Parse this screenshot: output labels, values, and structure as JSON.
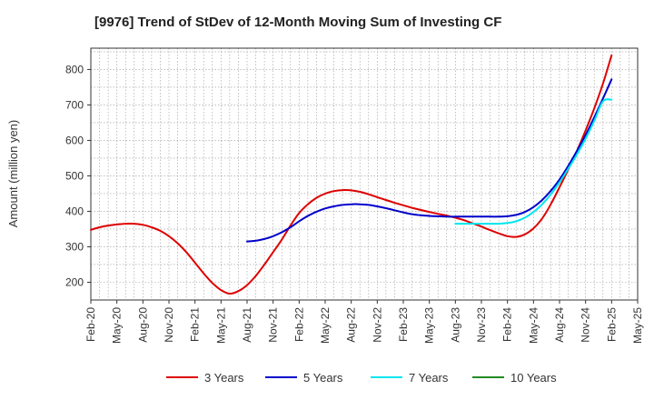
{
  "chart_data": {
    "type": "line",
    "title": "[9976]  Trend of StDev of 12-Month Moving Sum of Investing CF",
    "ylabel": "Amount (million yen)",
    "xlabel": "",
    "ylim": [
      150,
      860
    ],
    "yticks": [
      200,
      300,
      400,
      500,
      600,
      700,
      800
    ],
    "x_tick_labels": [
      "Feb-20",
      "May-20",
      "Aug-20",
      "Nov-20",
      "Feb-21",
      "May-21",
      "Aug-21",
      "Nov-21",
      "Feb-22",
      "May-22",
      "Aug-22",
      "Nov-22",
      "Feb-23",
      "May-23",
      "Aug-23",
      "Nov-23",
      "Feb-24",
      "May-24",
      "Aug-24",
      "Nov-24",
      "Feb-25",
      "May-25"
    ],
    "grid": true,
    "legend_position": "bottom",
    "series": [
      {
        "name": "3 Years",
        "color": "#dd0000",
        "points": [
          [
            "Feb-20",
            348
          ],
          [
            "Mar-20",
            355
          ],
          [
            "Apr-20",
            360
          ],
          [
            "May-20",
            363
          ],
          [
            "Jun-20",
            365
          ],
          [
            "Jul-20",
            365
          ],
          [
            "Aug-20",
            362
          ],
          [
            "Sep-20",
            355
          ],
          [
            "Oct-20",
            345
          ],
          [
            "Nov-20",
            330
          ],
          [
            "Dec-20",
            310
          ],
          [
            "Jan-21",
            285
          ],
          [
            "Feb-21",
            255
          ],
          [
            "Mar-21",
            225
          ],
          [
            "Apr-21",
            198
          ],
          [
            "May-21",
            178
          ],
          [
            "Jun-21",
            168
          ],
          [
            "Jul-21",
            175
          ],
          [
            "Aug-21",
            192
          ],
          [
            "Sep-21",
            218
          ],
          [
            "Oct-21",
            250
          ],
          [
            "Nov-21",
            285
          ],
          [
            "Dec-21",
            320
          ],
          [
            "Jan-22",
            360
          ],
          [
            "Feb-22",
            395
          ],
          [
            "Mar-22",
            420
          ],
          [
            "Apr-22",
            438
          ],
          [
            "May-22",
            450
          ],
          [
            "Jun-22",
            457
          ],
          [
            "Jul-22",
            460
          ],
          [
            "Aug-22",
            459
          ],
          [
            "Sep-22",
            455
          ],
          [
            "Oct-22",
            448
          ],
          [
            "Nov-22",
            440
          ],
          [
            "Dec-22",
            432
          ],
          [
            "Jan-23",
            424
          ],
          [
            "Feb-23",
            417
          ],
          [
            "Mar-23",
            410
          ],
          [
            "Apr-23",
            404
          ],
          [
            "May-23",
            398
          ],
          [
            "Jun-23",
            393
          ],
          [
            "Jul-23",
            388
          ],
          [
            "Aug-23",
            382
          ],
          [
            "Sep-23",
            375
          ],
          [
            "Oct-23",
            366
          ],
          [
            "Nov-23",
            357
          ],
          [
            "Dec-23",
            347
          ],
          [
            "Jan-24",
            338
          ],
          [
            "Feb-24",
            330
          ],
          [
            "Mar-24",
            328
          ],
          [
            "Apr-24",
            335
          ],
          [
            "May-24",
            352
          ],
          [
            "Jun-24",
            380
          ],
          [
            "Jul-24",
            420
          ],
          [
            "Aug-24",
            468
          ],
          [
            "Sep-24",
            518
          ],
          [
            "Oct-24",
            570
          ],
          [
            "Nov-24",
            628
          ],
          [
            "Dec-24",
            690
          ],
          [
            "Jan-25",
            760
          ],
          [
            "Feb-25",
            840
          ]
        ]
      },
      {
        "name": "5 Years",
        "color": "#0000cc",
        "points": [
          [
            "Aug-21",
            315
          ],
          [
            "Sep-21",
            317
          ],
          [
            "Oct-21",
            322
          ],
          [
            "Nov-21",
            330
          ],
          [
            "Dec-21",
            341
          ],
          [
            "Jan-22",
            355
          ],
          [
            "Feb-22",
            372
          ],
          [
            "Mar-22",
            387
          ],
          [
            "Apr-22",
            399
          ],
          [
            "May-22",
            408
          ],
          [
            "Jun-22",
            414
          ],
          [
            "Jul-22",
            418
          ],
          [
            "Aug-22",
            420
          ],
          [
            "Sep-22",
            420
          ],
          [
            "Oct-22",
            418
          ],
          [
            "Nov-22",
            414
          ],
          [
            "Dec-22",
            409
          ],
          [
            "Jan-23",
            403
          ],
          [
            "Feb-23",
            397
          ],
          [
            "Mar-23",
            392
          ],
          [
            "Apr-23",
            389
          ],
          [
            "May-23",
            387
          ],
          [
            "Jun-23",
            386
          ],
          [
            "Jul-23",
            385
          ],
          [
            "Aug-23",
            385
          ],
          [
            "Sep-23",
            385
          ],
          [
            "Oct-23",
            385
          ],
          [
            "Nov-23",
            385
          ],
          [
            "Dec-23",
            385
          ],
          [
            "Jan-24",
            385
          ],
          [
            "Feb-24",
            386
          ],
          [
            "Mar-24",
            390
          ],
          [
            "Apr-24",
            398
          ],
          [
            "May-24",
            412
          ],
          [
            "Jun-24",
            432
          ],
          [
            "Jul-24",
            458
          ],
          [
            "Aug-24",
            490
          ],
          [
            "Sep-24",
            528
          ],
          [
            "Oct-24",
            570
          ],
          [
            "Nov-24",
            615
          ],
          [
            "Dec-24",
            665
          ],
          [
            "Jan-25",
            718
          ],
          [
            "Feb-25",
            772
          ]
        ]
      },
      {
        "name": "7 Years",
        "color": "#00e5ee",
        "points": [
          [
            "Aug-23",
            365
          ],
          [
            "Sep-23",
            365
          ],
          [
            "Oct-23",
            365
          ],
          [
            "Nov-23",
            365
          ],
          [
            "Dec-23",
            365
          ],
          [
            "Jan-24",
            365
          ],
          [
            "Feb-24",
            367
          ],
          [
            "Mar-24",
            372
          ],
          [
            "Apr-24",
            382
          ],
          [
            "May-24",
            398
          ],
          [
            "Jun-24",
            420
          ],
          [
            "Jul-24",
            448
          ],
          [
            "Aug-24",
            482
          ],
          [
            "Sep-24",
            520
          ],
          [
            "Oct-24",
            560
          ],
          [
            "Nov-24",
            605
          ],
          [
            "Dec-24",
            655
          ],
          [
            "Jan-25",
            710
          ],
          [
            "Feb-25",
            715
          ]
        ]
      },
      {
        "name": "10 Years",
        "color": "#228b22",
        "points": []
      }
    ]
  }
}
